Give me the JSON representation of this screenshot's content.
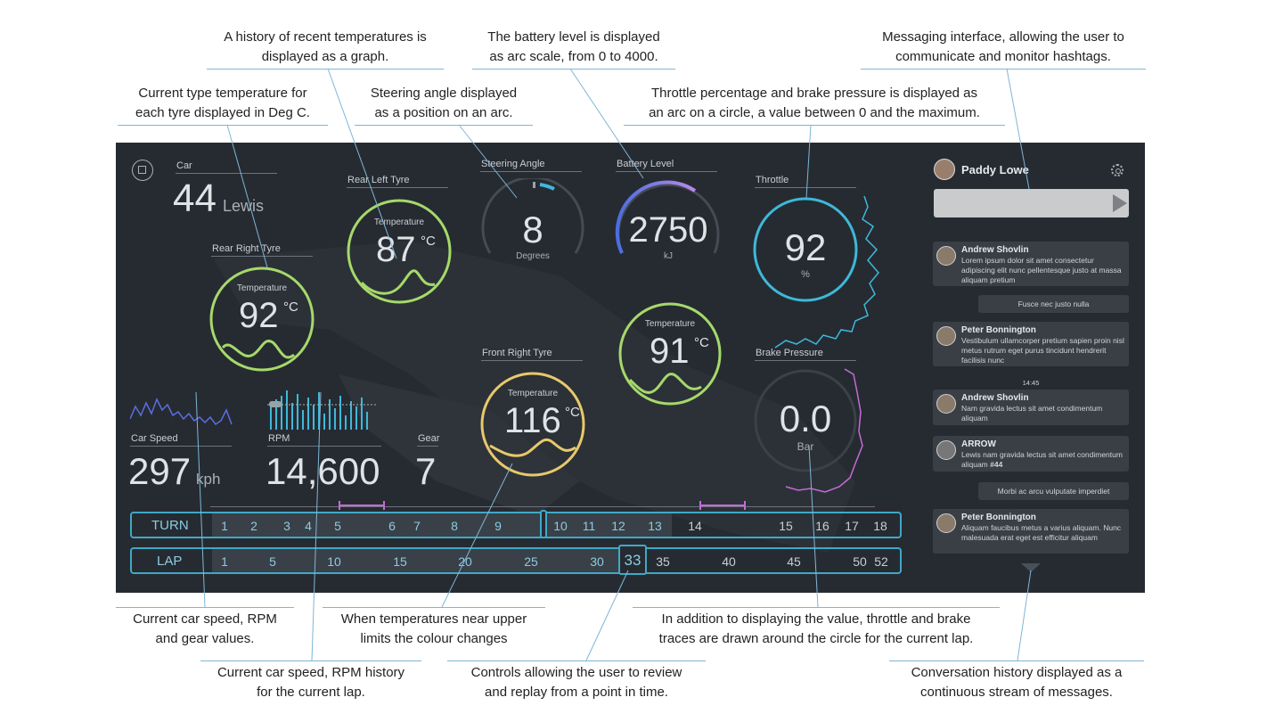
{
  "annotations": {
    "history_graph": [
      "A history of recent temperatures is",
      "displayed  as a graph."
    ],
    "battery": [
      "The battery level is displayed",
      "as arc scale, from 0 to 4000."
    ],
    "messaging": [
      "Messaging interface, allowing the user to",
      "communicate and monitor hashtags."
    ],
    "tyre_temp": [
      "Current type temperature for",
      "each tyre displayed in Deg C."
    ],
    "steering": [
      "Steering angle displayed",
      "as a position on an arc."
    ],
    "throttle": [
      "Throttle percentage and brake pressure is displayed as",
      "an arc on a circle,  a value between 0 and the maximum."
    ],
    "speed_values": [
      "Current car speed, RPM",
      "and gear values."
    ],
    "temp_colour": [
      "When temperatures near upper",
      "limits the colour changes"
    ],
    "traces": [
      "In addition to displaying the value, throttle and brake",
      "traces are drawn around the circle for the current lap."
    ],
    "speed_history": [
      "Current car speed, RPM history",
      "for the current lap."
    ],
    "replay": [
      "Controls allowing the user to review",
      "and replay from a point in time."
    ],
    "conversation": [
      "Conversation history displayed as a",
      "continuous stream of messages."
    ]
  },
  "dashboard": {
    "car": {
      "label": "Car",
      "number": "44",
      "driver": "Lewis"
    },
    "rear_left": {
      "label": "Rear Left Tyre",
      "caption": "Temperature",
      "value": "87",
      "unit": "°C",
      "color": "#a6d96a"
    },
    "rear_right": {
      "label": "Rear Right Tyre",
      "caption": "Temperature",
      "value": "92",
      "unit": "°C",
      "color": "#a6d96a"
    },
    "front_left": {
      "caption": "Temperature",
      "value": "91",
      "unit": "°C",
      "color": "#a6d96a"
    },
    "front_right": {
      "label": "Front Right Tyre",
      "caption": "Temperature",
      "value": "116",
      "unit": "°C",
      "color": "#e8c96a"
    },
    "steering": {
      "label": "Steering Angle",
      "value": "8",
      "unit": "Degrees"
    },
    "battery": {
      "label": "Battery Level",
      "value": "2750",
      "unit": "kJ",
      "fraction": 0.6875
    },
    "throttle": {
      "label": "Throttle",
      "value": "92",
      "unit": "%",
      "color": "#3fb8d9"
    },
    "brake": {
      "label": "Brake Pressure",
      "value": "0.0",
      "unit": "Bar",
      "color": "#c46bd6"
    },
    "speed": {
      "label": "Car Speed",
      "value": "297",
      "unit": "kph"
    },
    "rpm": {
      "label": "RPM",
      "value": "14,600"
    },
    "gear": {
      "label": "Gear",
      "value": "7"
    },
    "turn": {
      "label": "TURN",
      "numbers": [
        "1",
        "2",
        "3",
        "4",
        "5",
        "6",
        "7",
        "8",
        "9",
        "10",
        "11",
        "12",
        "13",
        "14",
        "15",
        "16",
        "17",
        "18"
      ],
      "current_index": 13
    },
    "lap": {
      "label": "LAP",
      "numbers": [
        "1",
        "5",
        "10",
        "15",
        "20",
        "25",
        "30",
        "33",
        "35",
        "40",
        "45",
        "50",
        "52"
      ],
      "current": "33"
    }
  },
  "chat": {
    "user": "Paddy Lowe",
    "messages": [
      {
        "author": "Andrew Shovlin",
        "text": "Lorem ipsum dolor sit amet consectetur adipiscing elit nunc pellentesque justo at massa aliquam pretium"
      },
      {
        "reply": "Fusce nec justo nulla"
      },
      {
        "author": "Peter Bonnington",
        "text": "Vestibulum ullamcorper pretium sapien proin nisl metus rutrum eget purus tincidunt hendrerit facilisis nunc"
      },
      {
        "time": "14:45"
      },
      {
        "author": "Andrew Shovlin",
        "text": "Nam gravida lectus sit amet condimentum aliquam"
      },
      {
        "author": "ARROW",
        "text": "Lewis nam gravida lectus sit amet condimentum aliquam",
        "tag": "#44"
      },
      {
        "reply": "Morbi ac arcu vulputate imperdiet"
      },
      {
        "author": "Peter Bonnington",
        "text": "Aliquam faucibus metus a varius aliquam. Nunc malesuada erat eget est efficitur aliquam"
      }
    ]
  }
}
